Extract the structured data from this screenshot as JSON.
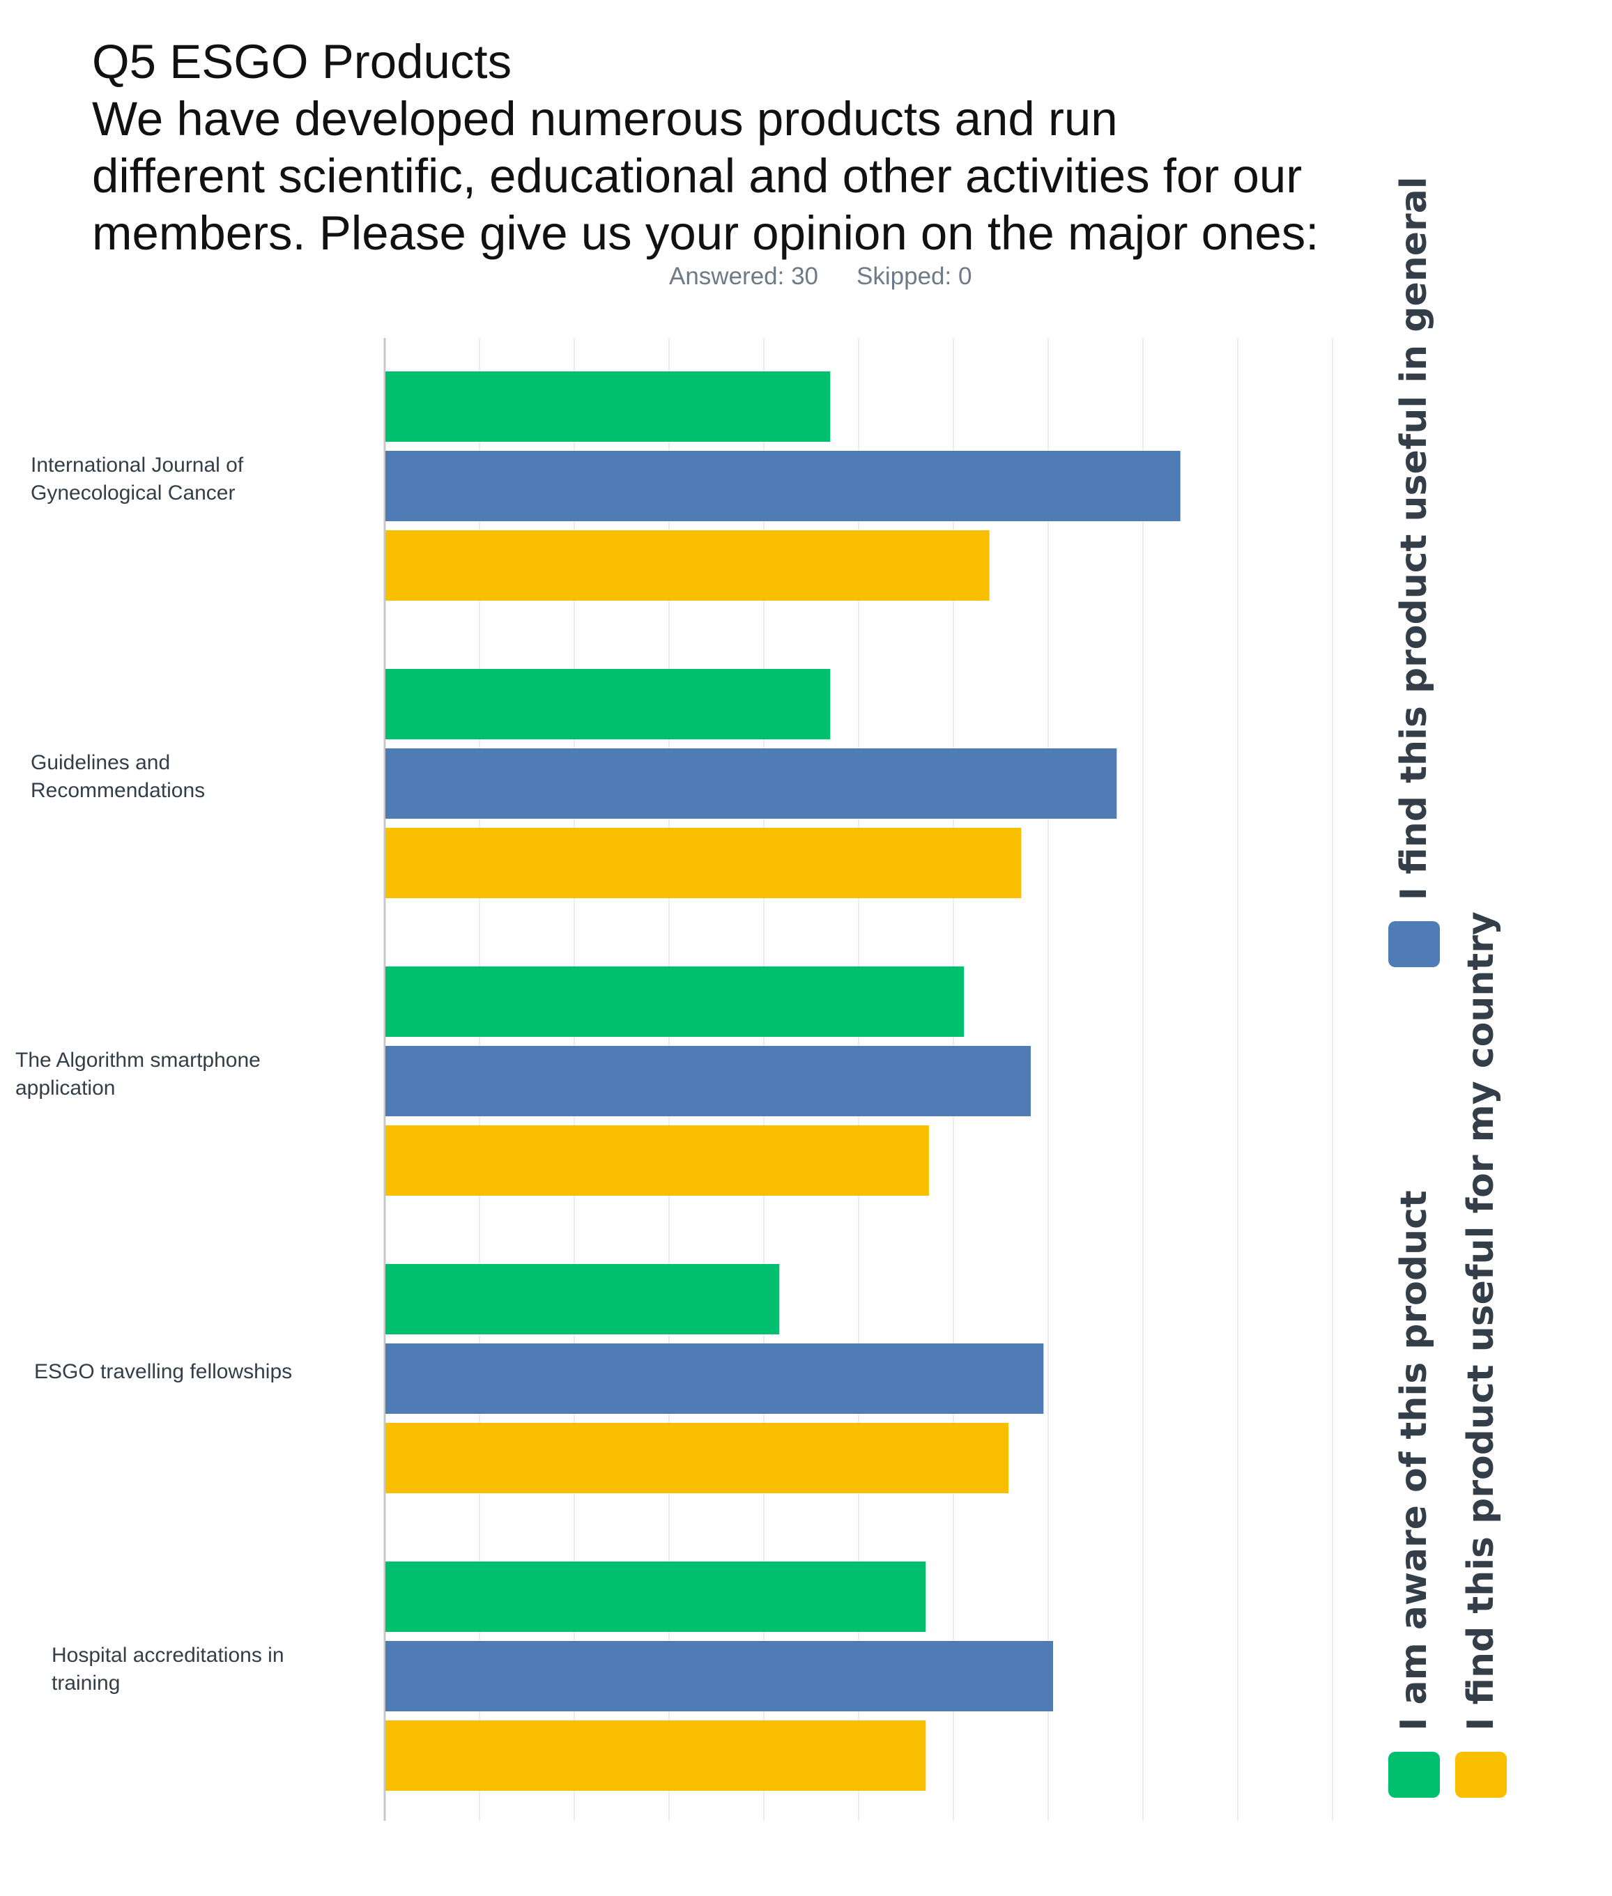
{
  "question": {
    "title_lines": [
      "Q5 ESGO Products",
      "We have developed numerous products and run",
      "different scientific, educational and other activities for our",
      "members. Please give us your opinion on the major ones:"
    ],
    "answered": "Answered: 30",
    "skipped": "Skipped: 0"
  },
  "chart_data": {
    "type": "bar",
    "orientation": "horizontal",
    "title": "Q5 ESGO Products",
    "categories": [
      "International Journal of Gynecological Cancer",
      "Guidelines and Recommendations",
      "The Algorithm smartphone application",
      "ESGO travelling fellowships",
      "Hospital accreditations in training"
    ],
    "category_label_lines": [
      [
        "International Journal of",
        "Gynecological Cancer"
      ],
      [
        "Guidelines and",
        "Recommendations"
      ],
      [
        "The Algorithm smartphone",
        "application"
      ],
      [
        "ESGO travelling fellowships"
      ],
      [
        "Hospital accreditations in",
        "training"
      ]
    ],
    "series": [
      {
        "name": "I am aware of this product",
        "color": "#00bf6f",
        "values": [
          14,
          14,
          18.2,
          12.4,
          17
        ]
      },
      {
        "name": "I find this product useful in general",
        "color": "#507cb6",
        "values": [
          25,
          23,
          20.3,
          20.7,
          21
        ]
      },
      {
        "name": "I find this product useful for my country",
        "color": "#f9be00",
        "values": [
          19,
          20,
          17.1,
          19.6,
          17
        ]
      }
    ],
    "xlim": [
      0,
      30
    ],
    "grid": true,
    "gridline_count": 10,
    "tick_labels_shown": false,
    "legend_position": "right-vertical"
  }
}
